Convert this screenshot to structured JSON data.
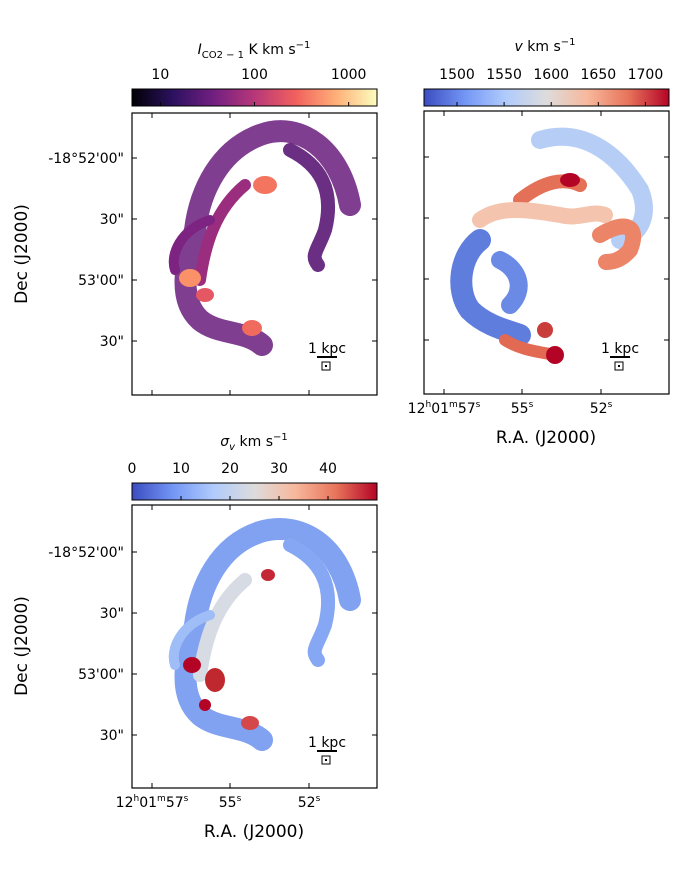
{
  "chart_data": [
    {
      "type": "heatmap",
      "panel": "top-left",
      "quantity": "integrated intensity",
      "colorbar": {
        "label_symbol": "I",
        "label_subscript": "CO2 − 1",
        "label_units": " K km s",
        "label_exponent": "−1",
        "scale": "log",
        "range": [
          5,
          2000
        ],
        "ticks": [
          10,
          100,
          1000
        ],
        "tick_labels": [
          "10",
          "100",
          "1000"
        ],
        "colormap": "magma",
        "colors": [
          "#000004",
          "#2c115f",
          "#721f81",
          "#b73779",
          "#f1605d",
          "#feb078",
          "#fcfdbf"
        ]
      },
      "dec_tick_labels": [
        "-18°52'00\"",
        "30\"",
        "53'00\"",
        "30\""
      ],
      "ylabel": "Dec (J2000)",
      "scale_bar": "1 kpc"
    },
    {
      "type": "heatmap",
      "panel": "top-right",
      "quantity": "velocity",
      "colorbar": {
        "label_symbol": "v",
        "label_units": " km s",
        "label_exponent": "−1",
        "scale": "linear",
        "range": [
          1465,
          1725
        ],
        "ticks": [
          1500,
          1550,
          1600,
          1650,
          1700
        ],
        "tick_labels": [
          "1500",
          "1550",
          "1600",
          "1650",
          "1700"
        ],
        "colormap": "coolwarm",
        "colors": [
          "#3b4cc0",
          "#7396f5",
          "#b0cbfc",
          "#dddcdc",
          "#f7b89c",
          "#e7745b",
          "#b40426"
        ]
      },
      "ra_tick_labels": [
        {
          "h": "12",
          "m": "01",
          "s": "57",
          "full": true
        },
        {
          "s": "55"
        },
        {
          "s": "52"
        }
      ],
      "xlabel": "R.A. (J2000)",
      "scale_bar": "1 kpc"
    },
    {
      "type": "heatmap",
      "panel": "bottom-left",
      "quantity": "velocity dispersion",
      "colorbar": {
        "label_symbol": "σ",
        "label_subscript": "v",
        "label_units": " km s",
        "label_exponent": "−1",
        "scale": "linear",
        "range": [
          0,
          50
        ],
        "ticks": [
          0,
          10,
          20,
          30,
          40
        ],
        "tick_labels": [
          "0",
          "10",
          "20",
          "30",
          "40"
        ],
        "colormap": "coolwarm",
        "colors": [
          "#3b4cc0",
          "#7396f5",
          "#b0cbfc",
          "#dddcdc",
          "#f7b89c",
          "#e7745b",
          "#b40426"
        ]
      },
      "dec_tick_labels": [
        "-18°52'00\"",
        "30\"",
        "53'00\"",
        "30\""
      ],
      "ra_tick_labels": [
        {
          "h": "12",
          "m": "01",
          "s": "57",
          "full": true
        },
        {
          "s": "55"
        },
        {
          "s": "52"
        }
      ],
      "ylabel": "Dec (J2000)",
      "xlabel": "R.A. (J2000)",
      "scale_bar": "1 kpc"
    }
  ]
}
